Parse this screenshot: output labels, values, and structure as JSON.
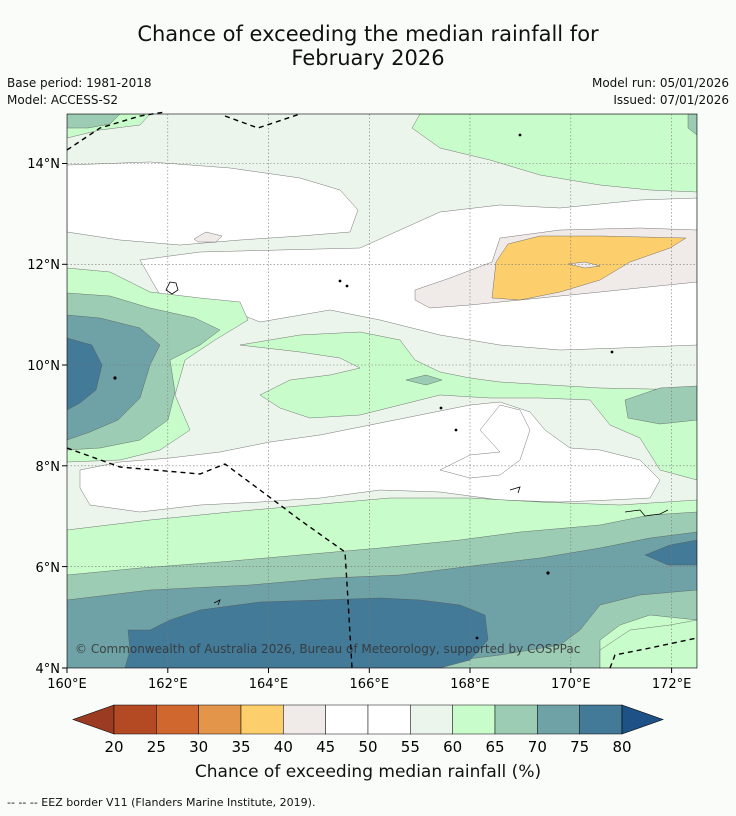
{
  "title": {
    "line1": "Chance of exceeding the median rainfall for",
    "line2": "February 2026"
  },
  "meta": {
    "base_period": "Base period: 1981-2018",
    "model": "Model: ACCESS-S2",
    "model_run": "Model run: 05/01/2026",
    "issued": "Issued: 07/01/2026"
  },
  "map": {
    "lon_ticks": [
      "160°E",
      "162°E",
      "164°E",
      "166°E",
      "168°E",
      "170°E",
      "172°E"
    ],
    "lat_ticks": [
      "14°N",
      "12°N",
      "10°N",
      "8°N",
      "6°N",
      "4°N"
    ],
    "copyright": "© Commonwealth of Australia 2026, Bureau of Meteorology, supported by COSPPac"
  },
  "colorbar": {
    "title": "Chance of exceeding median rainfall (%)",
    "labels": [
      "20",
      "25",
      "30",
      "35",
      "40",
      "45",
      "50",
      "55",
      "60",
      "65",
      "70",
      "75",
      "80"
    ],
    "colors": [
      "#b34a24",
      "#d0672f",
      "#e3954a",
      "#fdce6c",
      "#f0ebe8",
      "#ffffff",
      "#ffffff",
      "#ebf5eb",
      "#c8fccb",
      "#9ccdb4",
      "#6fa2a6",
      "#437a98"
    ],
    "under_color": "#9b3c22",
    "over_color": "#1e5186"
  },
  "legend_note": "--  --  -- EEZ border V11 (Flanders Marine Institute, 2019)."
}
